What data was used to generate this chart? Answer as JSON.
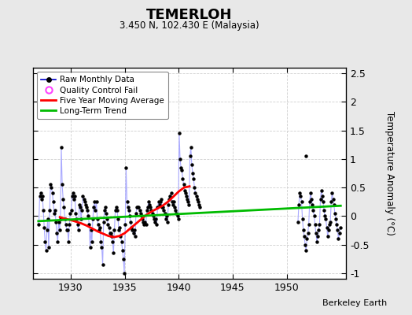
{
  "title": "TEMERLOH",
  "subtitle": "3.450 N, 102.430 E (Malaysia)",
  "ylabel": "Temperature Anomaly (°C)",
  "credit": "Berkeley Earth",
  "ylim": [
    -1.1,
    2.6
  ],
  "yticks": [
    -1,
    -0.5,
    0,
    0.5,
    1,
    1.5,
    2,
    2.5
  ],
  "xlim": [
    1926.5,
    1955.5
  ],
  "xticks": [
    1930,
    1935,
    1940,
    1945,
    1950
  ],
  "bg_color": "#e8e8e8",
  "plot_bg_color": "#ffffff",
  "grid_color": "#d0d0d0",
  "raw_line_color": "#aaaaff",
  "raw_marker_color": "#000000",
  "moving_avg_color": "#ff0000",
  "trend_color": "#00bb00",
  "raw_data_seg1_x": [
    1927.042,
    1927.125,
    1927.208,
    1927.292,
    1927.375,
    1927.458,
    1927.542,
    1927.625,
    1927.708,
    1927.792,
    1927.875,
    1927.958,
    1928.042,
    1928.125,
    1928.208,
    1928.292,
    1928.375,
    1928.458,
    1928.542,
    1928.625,
    1928.708,
    1928.792,
    1928.875,
    1928.958,
    1929.042,
    1929.125,
    1929.208,
    1929.292,
    1929.375,
    1929.458,
    1929.542,
    1929.625,
    1929.708,
    1929.792,
    1929.875,
    1929.958,
    1930.042,
    1930.125,
    1930.208,
    1930.292,
    1930.375,
    1930.458,
    1930.542,
    1930.625,
    1930.708,
    1930.792,
    1930.875,
    1930.958,
    1931.042,
    1931.125,
    1931.208,
    1931.292,
    1931.375,
    1931.458,
    1931.542,
    1931.625,
    1931.708,
    1931.792,
    1931.875,
    1931.958,
    1932.042,
    1932.125,
    1932.208,
    1932.292,
    1932.375,
    1932.458,
    1932.542,
    1932.625,
    1932.708,
    1932.792,
    1932.875,
    1932.958,
    1933.042,
    1933.125,
    1933.208,
    1933.292,
    1933.375,
    1933.458,
    1933.542,
    1933.625,
    1933.708,
    1933.792,
    1933.875,
    1933.958,
    1934.042,
    1934.125,
    1934.208,
    1934.292,
    1934.375,
    1934.458,
    1934.542,
    1934.625,
    1934.708,
    1934.792,
    1934.875,
    1934.958,
    1935.042,
    1935.125,
    1935.208,
    1935.292,
    1935.375,
    1935.458,
    1935.542,
    1935.625,
    1935.708,
    1935.792,
    1935.875,
    1935.958,
    1936.042,
    1936.125,
    1936.208,
    1936.292,
    1936.375,
    1936.458,
    1936.542,
    1936.625,
    1936.708,
    1936.792,
    1936.875,
    1936.958,
    1937.042,
    1937.125,
    1937.208,
    1937.292,
    1937.375,
    1937.458,
    1937.542,
    1937.625,
    1937.708,
    1937.792,
    1937.875,
    1937.958,
    1938.042,
    1938.125,
    1938.208,
    1938.292,
    1938.375,
    1938.458,
    1938.542,
    1938.625,
    1938.708,
    1938.792,
    1938.875,
    1938.958,
    1939.042,
    1939.125,
    1939.208,
    1939.292,
    1939.375,
    1939.458,
    1939.542,
    1939.625,
    1939.708,
    1939.792,
    1939.875,
    1939.958,
    1940.042,
    1940.125,
    1940.208,
    1940.292,
    1940.375,
    1940.458,
    1940.542,
    1940.625,
    1940.708,
    1940.792,
    1940.875,
    1940.958,
    1941.042,
    1941.125,
    1941.208,
    1941.292,
    1941.375,
    1941.458,
    1941.542,
    1941.625,
    1941.708,
    1941.792,
    1941.875,
    1941.958
  ],
  "raw_data_seg1_y": [
    -0.15,
    0.35,
    0.4,
    0.3,
    0.35,
    0.1,
    -0.2,
    -0.45,
    -0.6,
    -0.25,
    -0.05,
    -0.55,
    0.1,
    0.55,
    0.5,
    0.4,
    0.25,
    0.05,
    0.1,
    -0.1,
    -0.3,
    -0.45,
    -0.1,
    -0.25,
    -0.05,
    1.2,
    0.55,
    0.3,
    0.15,
    -0.05,
    -0.15,
    -0.25,
    -0.25,
    -0.45,
    -0.15,
    0.05,
    0.1,
    0.35,
    0.4,
    0.3,
    0.35,
    0.05,
    -0.05,
    -0.15,
    -0.25,
    0.2,
    0.15,
    -0.05,
    0.1,
    0.35,
    0.3,
    0.25,
    0.2,
    0.15,
    0.1,
    0.0,
    -0.15,
    -0.55,
    -0.25,
    -0.45,
    -0.05,
    0.15,
    0.25,
    0.1,
    0.25,
    -0.05,
    -0.15,
    -0.25,
    -0.2,
    -0.45,
    -0.55,
    -0.85,
    -0.1,
    0.1,
    0.15,
    0.05,
    -0.05,
    -0.15,
    -0.2,
    -0.3,
    -0.3,
    -0.35,
    -0.45,
    -0.65,
    -0.25,
    0.1,
    0.15,
    0.1,
    -0.05,
    -0.25,
    -0.2,
    -0.35,
    -0.45,
    -0.6,
    -0.75,
    -1.0,
    -0.15,
    0.85,
    0.25,
    0.15,
    0.1,
    0.0,
    -0.1,
    -0.2,
    -0.25,
    -0.3,
    -0.25,
    -0.35,
    0.05,
    0.15,
    0.15,
    0.15,
    0.1,
    0.05,
    0.0,
    -0.05,
    -0.1,
    -0.15,
    -0.1,
    -0.15,
    0.1,
    0.15,
    0.25,
    0.2,
    0.15,
    0.1,
    0.05,
    0.0,
    -0.05,
    -0.1,
    -0.05,
    -0.15,
    0.15,
    0.25,
    0.2,
    0.25,
    0.3,
    0.15,
    0.15,
    0.1,
    0.05,
    -0.05,
    0.0,
    -0.1,
    0.2,
    0.3,
    0.35,
    0.4,
    0.25,
    0.2,
    0.25,
    0.15,
    0.1,
    0.05,
    0.0,
    -0.05,
    1.45,
    1.0,
    0.85,
    0.8,
    0.65,
    0.55,
    0.45,
    0.4,
    0.35,
    0.3,
    0.25,
    0.2,
    1.05,
    1.2,
    0.9,
    0.75,
    0.65,
    0.5,
    0.4,
    0.35,
    0.3,
    0.25,
    0.2,
    0.15
  ],
  "raw_data_seg2_x": [
    1951.042,
    1951.125,
    1951.208,
    1951.292,
    1951.375,
    1951.458,
    1951.542,
    1951.625,
    1951.708,
    1951.792,
    1951.875,
    1951.958,
    1952.042,
    1952.125,
    1952.208,
    1952.292,
    1952.375,
    1952.458,
    1952.542,
    1952.625,
    1952.708,
    1952.792,
    1952.875,
    1952.958,
    1953.042,
    1953.125,
    1953.208,
    1953.292,
    1953.375,
    1953.458,
    1953.542,
    1953.625,
    1953.708,
    1953.792,
    1953.875,
    1953.958,
    1954.042,
    1954.125,
    1954.208,
    1954.292,
    1954.375,
    1954.458,
    1954.542,
    1954.625,
    1954.708,
    1954.792,
    1954.875,
    1954.958
  ],
  "raw_data_seg2_y": [
    -0.1,
    0.2,
    0.4,
    0.35,
    0.25,
    -0.05,
    -0.25,
    -0.35,
    -0.5,
    -0.6,
    -0.4,
    -0.3,
    -0.15,
    0.25,
    0.4,
    0.3,
    0.2,
    0.1,
    0.0,
    -0.15,
    -0.3,
    -0.45,
    -0.35,
    -0.25,
    -0.15,
    0.3,
    0.45,
    0.35,
    0.25,
    0.1,
    0.0,
    -0.05,
    -0.2,
    -0.35,
    -0.25,
    -0.15,
    -0.1,
    0.25,
    0.4,
    0.3,
    0.2,
    0.05,
    -0.05,
    -0.15,
    -0.25,
    -0.4,
    -0.3,
    -0.2
  ],
  "isolated_point_x": 1951.75,
  "isolated_point_y": 1.05,
  "moving_avg_x": [
    1929.0,
    1929.5,
    1930.0,
    1930.5,
    1931.0,
    1931.5,
    1932.0,
    1932.5,
    1933.0,
    1933.5,
    1934.0,
    1934.5,
    1935.0,
    1935.5,
    1936.0,
    1936.5,
    1937.0,
    1937.5,
    1938.0,
    1938.5,
    1939.0,
    1939.5,
    1940.0,
    1940.5,
    1941.0
  ],
  "moving_avg_y": [
    -0.02,
    -0.05,
    -0.07,
    -0.1,
    -0.13,
    -0.17,
    -0.22,
    -0.27,
    -0.31,
    -0.35,
    -0.37,
    -0.35,
    -0.3,
    -0.22,
    -0.14,
    -0.06,
    0.02,
    0.08,
    0.13,
    0.18,
    0.25,
    0.34,
    0.43,
    0.5,
    0.52
  ],
  "trend_x": [
    1927.0,
    1955.0
  ],
  "trend_y": [
    -0.09,
    0.18
  ]
}
